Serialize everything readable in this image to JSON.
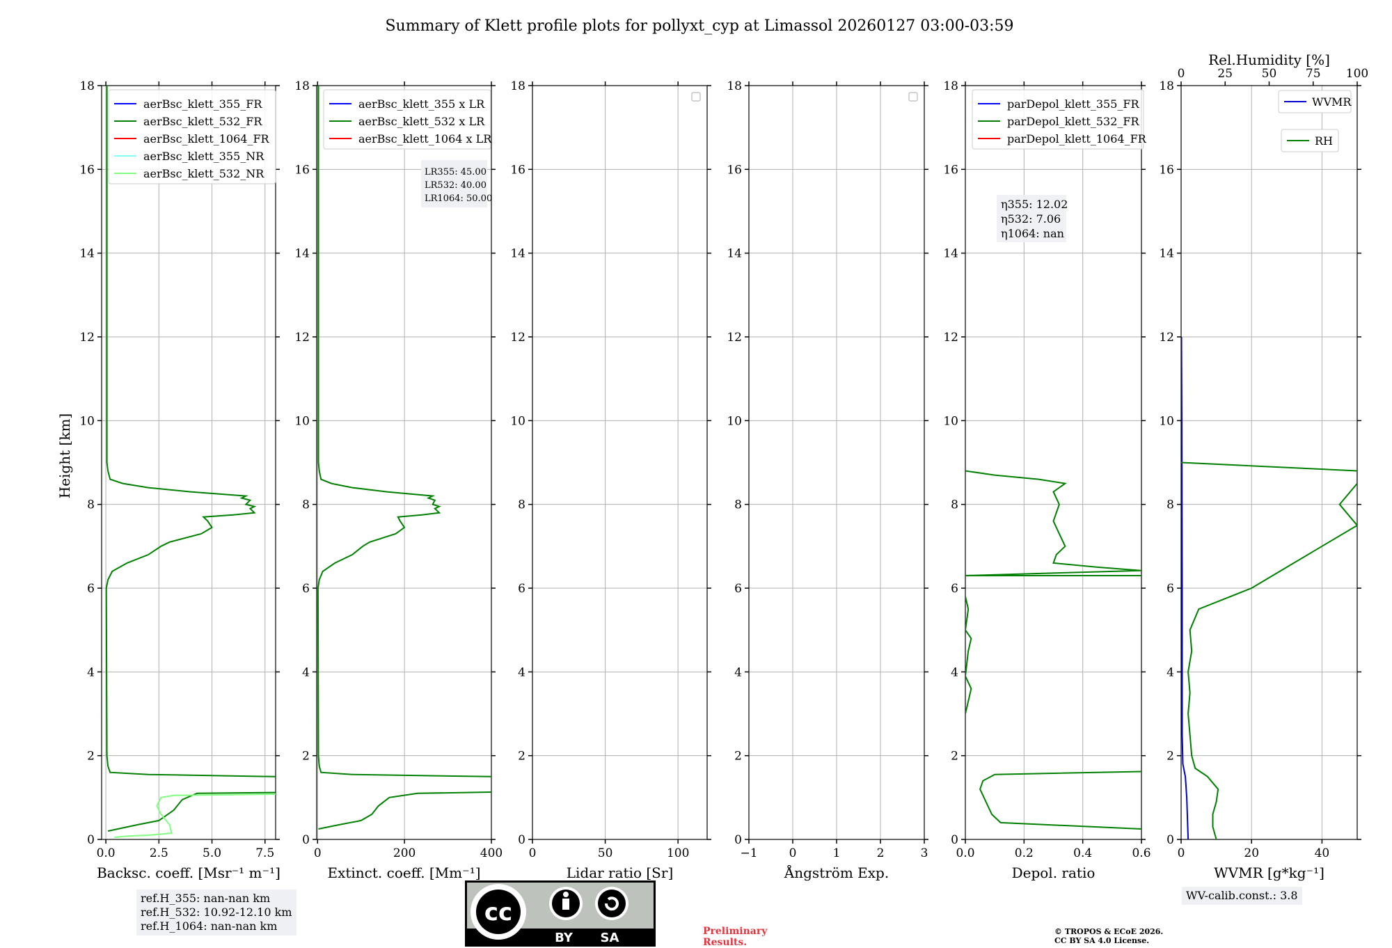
{
  "title": "Summary of Klett profile plots for pollyxt_cyp at Limassol 20260127 03:00-03:59",
  "ylabel": "Height [km]",
  "colors": {
    "c355": "#0000ff",
    "c532": "#008000",
    "c1064": "#ff0000",
    "c355nr": "#80ffff",
    "c532nr": "#80ff80",
    "wvmr": "#0000cc",
    "rh": "#008000"
  },
  "chart_data": [
    {
      "type": "line",
      "xlabel": "Backsc. coeff. [Msr⁻¹ m⁻¹]",
      "xlim": [
        -0.2,
        8.0
      ],
      "ylim": [
        0,
        18
      ],
      "xticks": [
        0.0,
        2.5,
        5.0,
        7.5
      ],
      "xticklabels": [
        "0.0",
        "2.5",
        "5.0",
        "7.5"
      ],
      "legend": [
        "aerBsc_klett_355_FR",
        "aerBsc_klett_532_FR",
        "aerBsc_klett_1064_FR",
        "aerBsc_klett_355_NR",
        "aerBsc_klett_532_NR"
      ],
      "series": [
        {
          "name": "aerBsc_klett_532_FR",
          "color": "c532",
          "points": [
            [
              0.1,
              0.2
            ],
            [
              1.5,
              0.35
            ],
            [
              2.5,
              0.45
            ],
            [
              3.2,
              0.7
            ],
            [
              3.6,
              0.95
            ],
            [
              4.3,
              1.1
            ],
            [
              8.0,
              1.12
            ]
          ]
        },
        {
          "name": "aerBsc_klett_532_FR_upper",
          "color": "c532",
          "points": [
            [
              8.0,
              1.5
            ],
            [
              2.0,
              1.55
            ],
            [
              0.2,
              1.6
            ],
            [
              0.1,
              1.75
            ],
            [
              0.05,
              2.0
            ],
            [
              0.02,
              6.0
            ],
            [
              0.1,
              6.2
            ],
            [
              0.3,
              6.4
            ],
            [
              1.0,
              6.6
            ],
            [
              2.0,
              6.8
            ],
            [
              2.6,
              7.0
            ],
            [
              3.0,
              7.1
            ],
            [
              4.5,
              7.3
            ],
            [
              5.0,
              7.45
            ],
            [
              4.8,
              7.6
            ],
            [
              4.6,
              7.7
            ],
            [
              6.0,
              7.75
            ],
            [
              7.0,
              7.8
            ],
            [
              6.8,
              7.9
            ],
            [
              7.0,
              7.95
            ],
            [
              6.6,
              8.0
            ],
            [
              6.8,
              8.1
            ],
            [
              6.4,
              8.15
            ],
            [
              6.6,
              8.2
            ],
            [
              4.0,
              8.3
            ],
            [
              2.0,
              8.4
            ],
            [
              0.8,
              8.5
            ],
            [
              0.2,
              8.6
            ],
            [
              0.1,
              8.8
            ],
            [
              0.05,
              9.0
            ],
            [
              0.05,
              18.0
            ]
          ]
        },
        {
          "name": "aerBsc_klett_532_NR",
          "color": "c532nr",
          "points": [
            [
              0.4,
              0.05
            ],
            [
              1.0,
              0.08
            ],
            [
              2.0,
              0.1
            ],
            [
              3.1,
              0.15
            ],
            [
              3.0,
              0.35
            ],
            [
              2.6,
              0.6
            ],
            [
              2.4,
              0.8
            ],
            [
              2.6,
              1.0
            ],
            [
              3.2,
              1.05
            ],
            [
              8.0,
              1.08
            ]
          ]
        }
      ]
    },
    {
      "type": "line",
      "xlabel": "Extinct. coeff. [Mm⁻¹]",
      "xlim": [
        -2,
        400
      ],
      "ylim": [
        0,
        18
      ],
      "xticks": [
        0,
        200,
        400
      ],
      "xticklabels": [
        "0",
        "200",
        "400"
      ],
      "legend": [
        "aerBsc_klett_355 x LR",
        "aerBsc_klett_532 x LR",
        "aerBsc_klett_1064 x LR"
      ],
      "lr_text": [
        "LR355: 45.00",
        "LR532: 40.00",
        "LR1064: 50.00"
      ],
      "series": [
        {
          "name": "aerBsc_klett_532 x LR",
          "color": "c532",
          "points": [
            [
              2,
              0.25
            ],
            [
              50,
              0.35
            ],
            [
              100,
              0.45
            ],
            [
              125,
              0.6
            ],
            [
              140,
              0.8
            ],
            [
              165,
              1.0
            ],
            [
              230,
              1.1
            ],
            [
              400,
              1.13
            ]
          ]
        },
        {
          "name": "aerBsc_klett_532 x LR upper",
          "color": "c532",
          "points": [
            [
              400,
              1.5
            ],
            [
              80,
              1.55
            ],
            [
              8,
              1.6
            ],
            [
              4,
              1.75
            ],
            [
              2,
              2.0
            ],
            [
              1,
              6.0
            ],
            [
              4,
              6.2
            ],
            [
              12,
              6.4
            ],
            [
              40,
              6.6
            ],
            [
              80,
              6.8
            ],
            [
              104,
              7.0
            ],
            [
              120,
              7.1
            ],
            [
              180,
              7.3
            ],
            [
              200,
              7.45
            ],
            [
              190,
              7.6
            ],
            [
              185,
              7.7
            ],
            [
              240,
              7.75
            ],
            [
              280,
              7.8
            ],
            [
              270,
              7.9
            ],
            [
              280,
              7.95
            ],
            [
              265,
              8.0
            ],
            [
              270,
              8.1
            ],
            [
              255,
              8.15
            ],
            [
              265,
              8.2
            ],
            [
              160,
              8.3
            ],
            [
              80,
              8.4
            ],
            [
              32,
              8.5
            ],
            [
              8,
              8.6
            ],
            [
              4,
              8.8
            ],
            [
              2,
              9.0
            ],
            [
              2,
              18.0
            ]
          ]
        }
      ]
    },
    {
      "type": "line",
      "xlabel": "Lidar ratio [Sr]",
      "xlim": [
        0,
        120
      ],
      "ylim": [
        0,
        18
      ],
      "xticks": [
        0,
        50,
        100
      ],
      "xticklabels": [
        "0",
        "50",
        "100"
      ],
      "series": []
    },
    {
      "type": "line",
      "xlabel": "Ångström Exp.",
      "xlim": [
        -1,
        3
      ],
      "ylim": [
        0,
        18
      ],
      "xticks": [
        -1,
        0,
        1,
        2,
        3
      ],
      "xticklabels": [
        "−1",
        "0",
        "1",
        "2",
        "3"
      ],
      "series": []
    },
    {
      "type": "line",
      "xlabel": "Depol. ratio",
      "xlim": [
        0,
        0.6
      ],
      "ylim": [
        0,
        18
      ],
      "xticks": [
        0.0,
        0.2,
        0.4,
        0.6
      ],
      "xticklabels": [
        "0.0",
        "0.2",
        "0.4",
        "0.6"
      ],
      "legend": [
        "parDepol_klett_355_FR",
        "parDepol_klett_532_FR",
        "parDepol_klett_1064_FR"
      ],
      "eta_text": [
        "η355: 12.02",
        "η532: 7.06",
        "η1064: nan"
      ],
      "series": [
        {
          "name": "parDepol_klett_532_FR",
          "color": "c532",
          "points": [
            [
              0.6,
              0.25
            ],
            [
              0.12,
              0.4
            ],
            [
              0.09,
              0.6
            ],
            [
              0.07,
              0.9
            ],
            [
              0.05,
              1.2
            ],
            [
              0.06,
              1.4
            ],
            [
              0.1,
              1.55
            ],
            [
              0.6,
              1.62
            ]
          ]
        },
        {
          "name": "parDepol_klett_532_FR_upper",
          "color": "c532",
          "points": [
            [
              0.6,
              6.3
            ],
            [
              0.0,
              6.3
            ],
            [
              0.6,
              6.42
            ],
            [
              0.45,
              6.5
            ],
            [
              0.3,
              6.6
            ],
            [
              0.31,
              6.8
            ],
            [
              0.34,
              7.0
            ],
            [
              0.32,
              7.3
            ],
            [
              0.3,
              7.6
            ],
            [
              0.32,
              8.0
            ],
            [
              0.3,
              8.3
            ],
            [
              0.34,
              8.5
            ],
            [
              0.25,
              8.6
            ],
            [
              0.1,
              8.7
            ],
            [
              0.0,
              8.8
            ]
          ]
        },
        {
          "name": "parDepol_klett_532_FR_low",
          "color": "c532",
          "points": [
            [
              0.0,
              3.0
            ],
            [
              0.01,
              3.3
            ],
            [
              0.02,
              3.6
            ],
            [
              0.0,
              3.9
            ],
            [
              0.01,
              4.5
            ],
            [
              0.02,
              4.8
            ],
            [
              0.0,
              5.0
            ],
            [
              0.01,
              5.5
            ],
            [
              0.0,
              5.8
            ]
          ]
        }
      ]
    },
    {
      "type": "line",
      "xlabel": "WVMR [g*kg⁻¹]",
      "x2label": "Rel.Humidity [%]",
      "xlim": [
        0,
        50
      ],
      "ylim": [
        0,
        18
      ],
      "xticks": [
        0,
        20,
        40
      ],
      "xticklabels": [
        "0",
        "20",
        "40"
      ],
      "x2lim": [
        0,
        100
      ],
      "x2ticks": [
        0,
        25,
        50,
        75,
        100
      ],
      "x2ticklabels": [
        "0",
        "25",
        "50",
        "75",
        "100"
      ],
      "legend": [
        "WVMR",
        "RH"
      ],
      "wv_calib": "WV-calib.const.: 3.8",
      "series": [
        {
          "name": "WVMR",
          "color": "wvmr",
          "points": [
            [
              2.0,
              0.0
            ],
            [
              1.8,
              0.5
            ],
            [
              1.6,
              1.0
            ],
            [
              1.2,
              1.5
            ],
            [
              0.5,
              1.8
            ],
            [
              0.3,
              2.5
            ],
            [
              0.3,
              6.0
            ],
            [
              0.2,
              10.0
            ],
            [
              0.1,
              12.0
            ]
          ]
        },
        {
          "name": "RH",
          "color": "rh",
          "axis": "x2",
          "points": [
            [
              20,
              0.0
            ],
            [
              18,
              0.3
            ],
            [
              18,
              0.6
            ],
            [
              20,
              0.9
            ],
            [
              21,
              1.2
            ],
            [
              15,
              1.5
            ],
            [
              8,
              1.7
            ],
            [
              6,
              2.0
            ],
            [
              5,
              2.5
            ],
            [
              4,
              3.0
            ],
            [
              5,
              3.5
            ],
            [
              4,
              4.0
            ],
            [
              6,
              4.5
            ],
            [
              5,
              5.0
            ],
            [
              10,
              5.5
            ],
            [
              40,
              6.0
            ],
            [
              60,
              6.5
            ],
            [
              80,
              7.0
            ],
            [
              100,
              7.5
            ],
            [
              90,
              8.0
            ],
            [
              100,
              8.5
            ],
            [
              100,
              8.8
            ],
            [
              0,
              9.0
            ]
          ]
        }
      ]
    }
  ],
  "refH": [
    "ref.H_355: nan-nan km",
    "ref.H_532: 10.92-12.10 km",
    "ref.H_1064: nan-nan km"
  ],
  "badge": {
    "top": "cc",
    "by": "BY",
    "sa": "SA"
  },
  "preliminary": [
    "Preliminary",
    "Results."
  ],
  "copyright": [
    "© TROPOS & ECoE 2026.",
    "CC BY SA 4.0 License."
  ]
}
